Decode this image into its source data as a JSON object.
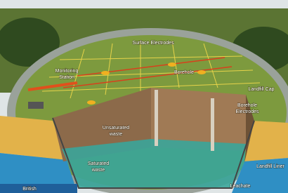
{
  "labels": [
    {
      "lines": [
        "Surface Electrodes"
      ]
    },
    {
      "lines": [
        "Monitoring",
        "Station"
      ]
    },
    {
      "lines": [
        "Borehole"
      ]
    },
    {
      "lines": [
        "Landfill Cap"
      ]
    },
    {
      "lines": [
        "Borehole",
        "Electrodes"
      ]
    },
    {
      "lines": [
        "Unsaturated",
        "waste"
      ]
    },
    {
      "lines": [
        "Saturated",
        "waste"
      ]
    },
    {
      "lines": [
        "Landfill Liner"
      ]
    },
    {
      "lines": [
        "Leachate"
      ]
    },
    {
      "lines": [
        "British"
      ]
    }
  ]
}
